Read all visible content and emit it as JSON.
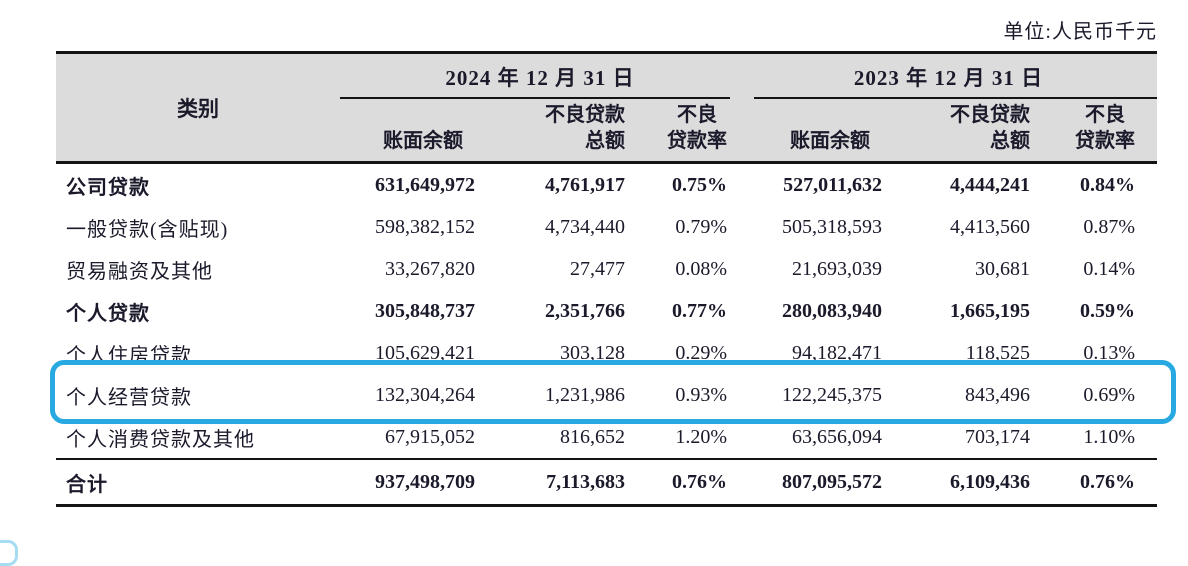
{
  "unit_label": "单位:人民币千元",
  "table": {
    "category_header": "类别",
    "groups": [
      {
        "date": "2024 年 12 月 31 日",
        "subheaders": [
          [
            "账面余额"
          ],
          [
            "不良贷款",
            "总额"
          ],
          [
            "不良",
            "贷款率"
          ]
        ]
      },
      {
        "date": "2023 年 12 月 31 日",
        "subheaders": [
          [
            "账面余额"
          ],
          [
            "不良贷款",
            "总额"
          ],
          [
            "不良",
            "贷款率"
          ]
        ]
      }
    ],
    "rows": [
      {
        "label": "公司贷款",
        "bold": true,
        "highlighted": false,
        "values": [
          "631,649,972",
          "4,761,917",
          "0.75%",
          "527,011,632",
          "4,444,241",
          "0.84%"
        ]
      },
      {
        "label": "一般贷款(含贴现)",
        "bold": false,
        "highlighted": false,
        "values": [
          "598,382,152",
          "4,734,440",
          "0.79%",
          "505,318,593",
          "4,413,560",
          "0.87%"
        ]
      },
      {
        "label": "贸易融资及其他",
        "bold": false,
        "highlighted": false,
        "values": [
          "33,267,820",
          "27,477",
          "0.08%",
          "21,693,039",
          "30,681",
          "0.14%"
        ]
      },
      {
        "label": "个人贷款",
        "bold": true,
        "highlighted": false,
        "values": [
          "305,848,737",
          "2,351,766",
          "0.77%",
          "280,083,940",
          "1,665,195",
          "0.59%"
        ]
      },
      {
        "label": "个人住房贷款",
        "bold": false,
        "highlighted": false,
        "values": [
          "105,629,421",
          "303,128",
          "0.29%",
          "94,182,471",
          "118,525",
          "0.13%"
        ]
      },
      {
        "label": "个人经营贷款",
        "bold": false,
        "highlighted": true,
        "values": [
          "132,304,264",
          "1,231,986",
          "0.93%",
          "122,245,375",
          "843,496",
          "0.69%"
        ]
      },
      {
        "label": "个人消费贷款及其他",
        "bold": false,
        "highlighted": false,
        "values": [
          "67,915,052",
          "816,652",
          "1.20%",
          "63,656,094",
          "703,174",
          "1.10%"
        ]
      }
    ],
    "total_row": {
      "label": "合计",
      "bold": true,
      "values": [
        "937,498,709",
        "7,113,683",
        "0.76%",
        "807,095,572",
        "6,109,436",
        "0.76%"
      ]
    }
  },
  "colors": {
    "highlight_border": "#29a9e2",
    "header_bg": "#dcdcdc",
    "rule_line": "#141414",
    "text": "#1a1a2b"
  }
}
